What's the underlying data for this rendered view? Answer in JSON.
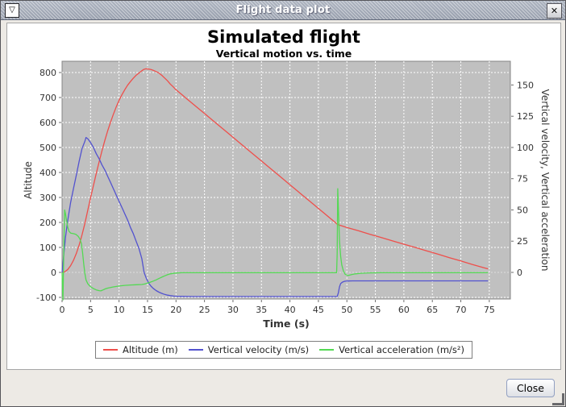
{
  "window": {
    "title": "Flight data plot",
    "close_label": "Close",
    "icons": {
      "system_menu": "▽",
      "close": "✕"
    }
  },
  "chart_data": {
    "type": "line",
    "title": "Simulated flight",
    "subtitle": "Vertical motion vs. time",
    "xlabel": "Time (s)",
    "ylabel_left": "Altitude",
    "ylabel_right": "Vertical velocity, Vertical acceleration",
    "plot_bg": "#c0c0c0",
    "grid_color": "#ffffff",
    "grid_dashed": true,
    "legend_position": "bottom",
    "xlim": [
      0,
      78.7
    ],
    "left_ylim": [
      -106.5,
      845.2
    ],
    "right_ylim": [
      -21.3,
      169.0
    ],
    "x_ticks": [
      0,
      5,
      10,
      15,
      20,
      25,
      30,
      35,
      40,
      45,
      50,
      55,
      60,
      65,
      70,
      75
    ],
    "left_ticks": [
      -100,
      0,
      100,
      200,
      300,
      400,
      500,
      600,
      700,
      800
    ],
    "right_ticks": [
      0,
      25,
      50,
      75,
      100,
      125,
      150
    ],
    "series": [
      {
        "name": "Altitude (m)",
        "color": "#ee4f4b",
        "axis": "left",
        "points": [
          [
            0,
            0
          ],
          [
            0.5,
            3
          ],
          [
            1,
            12
          ],
          [
            1.5,
            27
          ],
          [
            2,
            48
          ],
          [
            2.5,
            76
          ],
          [
            3,
            110
          ],
          [
            3.5,
            150
          ],
          [
            4,
            196
          ],
          [
            4.5,
            248
          ],
          [
            5,
            298
          ],
          [
            5.5,
            348
          ],
          [
            6,
            396
          ],
          [
            6.5,
            442
          ],
          [
            7,
            487
          ],
          [
            7.5,
            528
          ],
          [
            8,
            566
          ],
          [
            8.5,
            601
          ],
          [
            9,
            633
          ],
          [
            9.5,
            662
          ],
          [
            10,
            688
          ],
          [
            10.5,
            711
          ],
          [
            11,
            731
          ],
          [
            11.5,
            749
          ],
          [
            12,
            764
          ],
          [
            12.5,
            777
          ],
          [
            13,
            789
          ],
          [
            13.5,
            798
          ],
          [
            14,
            807
          ],
          [
            14.3,
            812
          ],
          [
            14.7,
            815
          ],
          [
            15.2,
            814
          ],
          [
            15.6,
            812
          ],
          [
            16,
            809
          ],
          [
            16.5,
            804
          ],
          [
            17,
            798
          ],
          [
            17.5,
            789
          ],
          [
            18,
            778
          ],
          [
            18.5,
            767
          ],
          [
            19,
            754
          ],
          [
            19.5,
            743
          ],
          [
            20,
            731
          ],
          [
            21,
            712
          ],
          [
            22,
            693
          ],
          [
            23,
            674
          ],
          [
            24,
            655
          ],
          [
            25,
            636
          ],
          [
            26,
            617
          ],
          [
            27,
            598
          ],
          [
            28,
            579
          ],
          [
            29,
            560
          ],
          [
            30,
            541
          ],
          [
            31,
            522
          ],
          [
            32,
            503
          ],
          [
            33,
            484
          ],
          [
            34,
            465
          ],
          [
            35,
            446
          ],
          [
            36,
            427
          ],
          [
            37,
            408
          ],
          [
            38,
            389
          ],
          [
            39,
            370
          ],
          [
            40,
            351
          ],
          [
            41,
            332
          ],
          [
            42,
            313
          ],
          [
            43,
            294
          ],
          [
            44,
            275
          ],
          [
            45,
            256
          ],
          [
            46,
            237
          ],
          [
            47,
            218
          ],
          [
            48,
            199
          ],
          [
            48.4,
            191
          ],
          [
            49,
            187
          ],
          [
            50,
            180
          ],
          [
            52,
            167
          ],
          [
            54,
            153
          ],
          [
            56,
            140
          ],
          [
            58,
            126
          ],
          [
            60,
            113
          ],
          [
            62,
            100
          ],
          [
            64,
            86
          ],
          [
            66,
            73
          ],
          [
            68,
            59
          ],
          [
            70,
            46
          ],
          [
            72,
            32
          ],
          [
            74,
            19
          ],
          [
            74.8,
            14
          ]
        ]
      },
      {
        "name": "Vertical velocity (m/s)",
        "color": "#5252cf",
        "axis": "right",
        "points": [
          [
            0,
            0
          ],
          [
            0.3,
            14
          ],
          [
            0.6,
            28
          ],
          [
            1,
            42
          ],
          [
            1.5,
            56
          ],
          [
            2,
            67
          ],
          [
            2.5,
            78
          ],
          [
            3,
            89
          ],
          [
            3.5,
            99
          ],
          [
            4,
            105
          ],
          [
            4.2,
            108
          ],
          [
            4.5,
            107
          ],
          [
            5,
            104
          ],
          [
            5.5,
            100
          ],
          [
            6,
            95
          ],
          [
            6.5,
            91
          ],
          [
            7,
            86
          ],
          [
            7.5,
            82
          ],
          [
            8,
            77
          ],
          [
            8.5,
            72
          ],
          [
            9,
            67
          ],
          [
            9.5,
            62
          ],
          [
            10,
            57
          ],
          [
            10.5,
            52
          ],
          [
            11,
            47
          ],
          [
            11.5,
            42
          ],
          [
            12,
            36
          ],
          [
            12.5,
            31
          ],
          [
            13,
            25
          ],
          [
            13.5,
            19
          ],
          [
            14,
            11
          ],
          [
            14.4,
            0
          ],
          [
            14.8,
            -5
          ],
          [
            15.2,
            -8.5
          ],
          [
            15.6,
            -11
          ],
          [
            16,
            -12.8
          ],
          [
            16.5,
            -14.5
          ],
          [
            17,
            -15.8
          ],
          [
            17.5,
            -16.8
          ],
          [
            18,
            -17.6
          ],
          [
            18.5,
            -18.2
          ],
          [
            19,
            -18.6
          ],
          [
            19.5,
            -18.9
          ],
          [
            20,
            -19.1
          ],
          [
            21,
            -19.2
          ],
          [
            23,
            -19.3
          ],
          [
            26,
            -19.3
          ],
          [
            30,
            -19.3
          ],
          [
            35,
            -19.3
          ],
          [
            40,
            -19.3
          ],
          [
            44,
            -19.3
          ],
          [
            48.3,
            -19.3
          ],
          [
            48.5,
            -16.5
          ],
          [
            48.7,
            -11.5
          ],
          [
            48.9,
            -9
          ],
          [
            49.2,
            -7.8
          ],
          [
            49.6,
            -7.1
          ],
          [
            50,
            -6.9
          ],
          [
            51,
            -6.8
          ],
          [
            53,
            -6.8
          ],
          [
            56,
            -6.8
          ],
          [
            60,
            -6.8
          ],
          [
            64,
            -6.8
          ],
          [
            68,
            -6.8
          ],
          [
            72,
            -6.8
          ],
          [
            74.8,
            -6.8
          ]
        ]
      },
      {
        "name": "Vertical acceleration (m/s²)",
        "color": "#53d953",
        "axis": "right",
        "points": [
          [
            0,
            0
          ],
          [
            0.08,
            -15
          ],
          [
            0.15,
            -22
          ],
          [
            0.25,
            5
          ],
          [
            0.35,
            30
          ],
          [
            0.45,
            50
          ],
          [
            0.6,
            47
          ],
          [
            0.8,
            41
          ],
          [
            1,
            36
          ],
          [
            1.2,
            33
          ],
          [
            1.5,
            31.5
          ],
          [
            2,
            31
          ],
          [
            2.4,
            30.5
          ],
          [
            2.8,
            29
          ],
          [
            3.1,
            27
          ],
          [
            3.4,
            23
          ],
          [
            3.6,
            16
          ],
          [
            3.8,
            7
          ],
          [
            4,
            -1
          ],
          [
            4.2,
            -6
          ],
          [
            4.5,
            -9
          ],
          [
            5,
            -11.5
          ],
          [
            5.5,
            -13
          ],
          [
            6,
            -14
          ],
          [
            6.5,
            -14.6
          ],
          [
            6.8,
            -14.8
          ],
          [
            7.2,
            -14
          ],
          [
            7.6,
            -13.2
          ],
          [
            8,
            -12.6
          ],
          [
            9,
            -11.6
          ],
          [
            10,
            -10.9
          ],
          [
            11,
            -10.4
          ],
          [
            12,
            -10.1
          ],
          [
            13,
            -9.9
          ],
          [
            14,
            -9.7
          ],
          [
            14.5,
            -9.3
          ],
          [
            15,
            -8.6
          ],
          [
            15.5,
            -7.8
          ],
          [
            16,
            -7
          ],
          [
            16.5,
            -6
          ],
          [
            17,
            -4.9
          ],
          [
            17.5,
            -3.8
          ],
          [
            18,
            -2.8
          ],
          [
            18.5,
            -1.9
          ],
          [
            19,
            -1.2
          ],
          [
            19.5,
            -0.8
          ],
          [
            20,
            -0.5
          ],
          [
            21,
            -0.3
          ],
          [
            25,
            -0.3
          ],
          [
            30,
            -0.3
          ],
          [
            35,
            -0.3
          ],
          [
            40,
            -0.3
          ],
          [
            45,
            -0.3
          ],
          [
            48.2,
            -0.3
          ],
          [
            48.3,
            15
          ],
          [
            48.4,
            67
          ],
          [
            48.55,
            45
          ],
          [
            48.7,
            25
          ],
          [
            48.9,
            13
          ],
          [
            49.1,
            6
          ],
          [
            49.4,
            1
          ],
          [
            49.7,
            -1.5
          ],
          [
            50.2,
            -2.5
          ],
          [
            50.8,
            -1.8
          ],
          [
            51.5,
            -1.2
          ],
          [
            52.5,
            -0.7
          ],
          [
            54,
            -0.4
          ],
          [
            56,
            -0.3
          ],
          [
            60,
            -0.3
          ],
          [
            65,
            -0.3
          ],
          [
            70,
            -0.3
          ],
          [
            74.8,
            -0.3
          ]
        ]
      }
    ]
  }
}
